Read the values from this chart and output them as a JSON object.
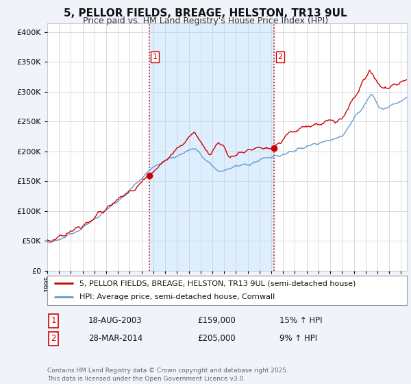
{
  "title": "5, PELLOR FIELDS, BREAGE, HELSTON, TR13 9UL",
  "subtitle": "Price paid vs. HM Land Registry's House Price Index (HPI)",
  "ytick_values": [
    0,
    50000,
    100000,
    150000,
    200000,
    250000,
    300000,
    350000,
    400000
  ],
  "ylim": [
    0,
    415000
  ],
  "xlim_start": 1995.3,
  "xlim_end": 2025.5,
  "legend_property_label": "5, PELLOR FIELDS, BREAGE, HELSTON, TR13 9UL (semi-detached house)",
  "legend_hpi_label": "HPI: Average price, semi-detached house, Cornwall",
  "property_color": "#cc0000",
  "hpi_color": "#6699cc",
  "hpi_fill_color": "#ddeeff",
  "vline_color": "#cc0000",
  "shade_color": "#ddeeff",
  "purchase1_date": 2003.63,
  "purchase1_price": 159000,
  "purchase1_label": "1",
  "purchase2_date": 2014.25,
  "purchase2_price": 205000,
  "purchase2_label": "2",
  "table_rows": [
    {
      "num": "1",
      "date": "18-AUG-2003",
      "price": "£159,000",
      "hpi": "15% ↑ HPI"
    },
    {
      "num": "2",
      "date": "28-MAR-2014",
      "price": "£205,000",
      "hpi": "9% ↑ HPI"
    }
  ],
  "footnote": "Contains HM Land Registry data © Crown copyright and database right 2025.\nThis data is licensed under the Open Government Licence v3.0.",
  "background_color": "#f0f4fa",
  "plot_bg_color": "#ffffff",
  "grid_color": "#cccccc",
  "title_fontsize": 11,
  "subtitle_fontsize": 9
}
